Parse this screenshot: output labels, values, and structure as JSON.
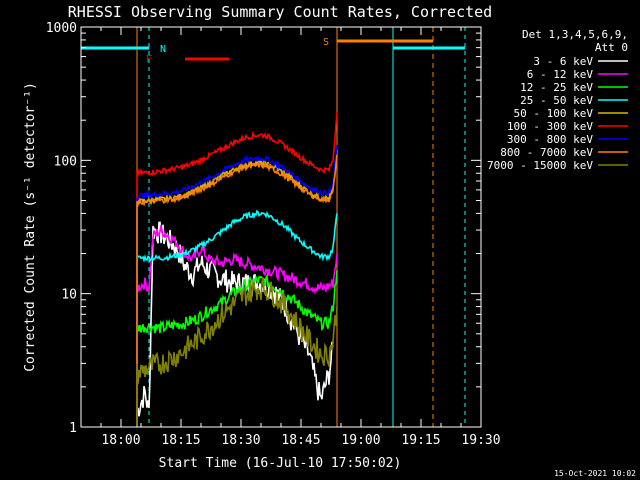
{
  "chart_data": {
    "type": "line",
    "title": "RHESSI Observing Summary Count Rates, Corrected",
    "xlabel": "Start Time (16-Jul-10 17:50:02)",
    "ylabel": "Corrected Count Rate (s⁻¹ detector⁻¹)",
    "footer": "15-Oct-2021 10:02",
    "yscale": "log",
    "ylim": [
      1,
      1000
    ],
    "xlim": [
      "17:50",
      "19:30"
    ],
    "x_ticks": [
      "18:00",
      "18:15",
      "18:30",
      "18:45",
      "19:00",
      "19:15",
      "19:30"
    ],
    "y_ticks": [
      "1",
      "10",
      "100",
      "1000"
    ],
    "legend_header": [
      "Det 1,3,4,5,6,9,",
      "Att 0"
    ],
    "legend_position": "right",
    "series": [
      {
        "name": "3 - 6 keV",
        "color": "#ffffff",
        "points": [
          [
            "18:04",
            1.3
          ],
          [
            "18:06",
            1.8
          ],
          [
            "18:07",
            1.3
          ],
          [
            "18:08",
            30
          ],
          [
            "18:10",
            28
          ],
          [
            "18:12",
            25
          ],
          [
            "18:14",
            22
          ],
          [
            "18:16",
            16
          ],
          [
            "18:18",
            14
          ],
          [
            "18:20",
            17
          ],
          [
            "18:22",
            15
          ],
          [
            "18:25",
            13
          ],
          [
            "18:28",
            12
          ],
          [
            "18:31",
            12
          ],
          [
            "18:33",
            12
          ],
          [
            "18:35",
            12
          ],
          [
            "18:37",
            11
          ],
          [
            "18:39",
            10
          ],
          [
            "18:41",
            8
          ],
          [
            "18:43",
            6
          ],
          [
            "18:45",
            4.5
          ],
          [
            "18:47",
            3.5
          ],
          [
            "18:49",
            2
          ],
          [
            "18:50",
            1.6
          ],
          [
            "18:52",
            2.5
          ],
          [
            "18:53",
            4
          ]
        ]
      },
      {
        "name": "6 - 12 keV",
        "color": "#ff00ff",
        "points": [
          [
            "18:04",
            11
          ],
          [
            "18:06",
            12
          ],
          [
            "18:07",
            11
          ],
          [
            "18:08",
            27
          ],
          [
            "18:10",
            30
          ],
          [
            "18:12",
            27
          ],
          [
            "18:14",
            24
          ],
          [
            "18:16",
            20
          ],
          [
            "18:18",
            18
          ],
          [
            "18:20",
            22
          ],
          [
            "18:22",
            18
          ],
          [
            "18:25",
            17
          ],
          [
            "18:28",
            18
          ],
          [
            "18:31",
            17
          ],
          [
            "18:34",
            16
          ],
          [
            "18:37",
            15
          ],
          [
            "18:40",
            14
          ],
          [
            "18:43",
            13
          ],
          [
            "18:46",
            12
          ],
          [
            "18:49",
            11
          ],
          [
            "18:51",
            11
          ],
          [
            "18:53",
            12
          ],
          [
            "18:54",
            20
          ]
        ]
      },
      {
        "name": "12 - 25 keV",
        "color": "#00ff00",
        "points": [
          [
            "18:04",
            5.5
          ],
          [
            "18:07",
            5.7
          ],
          [
            "18:10",
            5.5
          ],
          [
            "18:13",
            5.8
          ],
          [
            "18:16",
            6
          ],
          [
            "18:19",
            6.5
          ],
          [
            "18:22",
            7.5
          ],
          [
            "18:25",
            8.5
          ],
          [
            "18:28",
            10
          ],
          [
            "18:31",
            11.5
          ],
          [
            "18:34",
            12.5
          ],
          [
            "18:36",
            12.5
          ],
          [
            "18:38",
            11.5
          ],
          [
            "18:41",
            10
          ],
          [
            "18:44",
            8.5
          ],
          [
            "18:47",
            7
          ],
          [
            "18:50",
            6
          ],
          [
            "18:52",
            6
          ],
          [
            "18:53",
            8
          ],
          [
            "18:54",
            15
          ]
        ]
      },
      {
        "name": "25 - 50 keV",
        "color": "#00ffff",
        "points": [
          [
            "18:04",
            18.5
          ],
          [
            "18:07",
            18.5
          ],
          [
            "18:10",
            18.5
          ],
          [
            "18:13",
            19
          ],
          [
            "18:16",
            20
          ],
          [
            "18:19",
            22
          ],
          [
            "18:22",
            25
          ],
          [
            "18:25",
            29
          ],
          [
            "18:28",
            34
          ],
          [
            "18:31",
            38
          ],
          [
            "18:34",
            40
          ],
          [
            "18:36",
            40
          ],
          [
            "18:38",
            37
          ],
          [
            "18:41",
            32
          ],
          [
            "18:44",
            26
          ],
          [
            "18:47",
            22
          ],
          [
            "18:50",
            19
          ],
          [
            "18:52",
            19
          ],
          [
            "18:53",
            22
          ],
          [
            "18:54",
            40
          ]
        ]
      },
      {
        "name": "50 - 100 keV",
        "color": "#d4b800",
        "points": [
          [
            "18:04",
            49
          ],
          [
            "18:07",
            50
          ],
          [
            "18:10",
            51
          ],
          [
            "18:13",
            52
          ],
          [
            "18:16",
            55
          ],
          [
            "18:19",
            60
          ],
          [
            "18:22",
            67
          ],
          [
            "18:25",
            76
          ],
          [
            "18:28",
            85
          ],
          [
            "18:31",
            92
          ],
          [
            "18:34",
            96
          ],
          [
            "18:36",
            95
          ],
          [
            "18:38",
            90
          ],
          [
            "18:41",
            80
          ],
          [
            "18:44",
            68
          ],
          [
            "18:47",
            58
          ],
          [
            "18:50",
            52
          ],
          [
            "18:52",
            52
          ],
          [
            "18:53",
            60
          ],
          [
            "18:54",
            120
          ]
        ]
      },
      {
        "name": "100 - 300 keV",
        "color": "#ff0000",
        "points": [
          [
            "18:04",
            80
          ],
          [
            "18:07",
            81
          ],
          [
            "18:10",
            83
          ],
          [
            "18:13",
            86
          ],
          [
            "18:16",
            90
          ],
          [
            "18:19",
            97
          ],
          [
            "18:22",
            108
          ],
          [
            "18:25",
            120
          ],
          [
            "18:28",
            135
          ],
          [
            "18:31",
            148
          ],
          [
            "18:34",
            155
          ],
          [
            "18:36",
            154
          ],
          [
            "18:38",
            145
          ],
          [
            "18:41",
            128
          ],
          [
            "18:44",
            110
          ],
          [
            "18:47",
            95
          ],
          [
            "18:50",
            85
          ],
          [
            "18:52",
            85
          ],
          [
            "18:53",
            100
          ],
          [
            "18:54",
            230
          ]
        ]
      },
      {
        "name": "300 - 800 keV",
        "color": "#0000ff",
        "points": [
          [
            "18:04",
            54
          ],
          [
            "18:07",
            55
          ],
          [
            "18:10",
            56
          ],
          [
            "18:13",
            57
          ],
          [
            "18:16",
            60
          ],
          [
            "18:19",
            66
          ],
          [
            "18:22",
            73
          ],
          [
            "18:25",
            82
          ],
          [
            "18:28",
            92
          ],
          [
            "18:31",
            100
          ],
          [
            "18:34",
            104
          ],
          [
            "18:36",
            103
          ],
          [
            "18:38",
            97
          ],
          [
            "18:41",
            86
          ],
          [
            "18:44",
            73
          ],
          [
            "18:47",
            63
          ],
          [
            "18:50",
            57
          ],
          [
            "18:52",
            57
          ],
          [
            "18:53",
            66
          ],
          [
            "18:54",
            130
          ]
        ]
      },
      {
        "name": "800 - 7000 keV",
        "color": "#ff8000",
        "points": [
          [
            "18:04",
            48
          ],
          [
            "18:07",
            49
          ],
          [
            "18:10",
            50
          ],
          [
            "18:13",
            51
          ],
          [
            "18:16",
            54
          ],
          [
            "18:19",
            59
          ],
          [
            "18:22",
            65
          ],
          [
            "18:25",
            73
          ],
          [
            "18:28",
            82
          ],
          [
            "18:31",
            89
          ],
          [
            "18:34",
            92
          ],
          [
            "18:36",
            91
          ],
          [
            "18:38",
            86
          ],
          [
            "18:41",
            76
          ],
          [
            "18:44",
            65
          ],
          [
            "18:47",
            56
          ],
          [
            "18:50",
            51
          ],
          [
            "18:52",
            51
          ],
          [
            "18:53",
            58
          ],
          [
            "18:54",
            110
          ]
        ]
      },
      {
        "name": "7000 - 15000 keV",
        "color": "#808000",
        "points": [
          [
            "18:04",
            2.5
          ],
          [
            "18:07",
            2.8
          ],
          [
            "18:10",
            3
          ],
          [
            "18:13",
            3.3
          ],
          [
            "18:16",
            3.8
          ],
          [
            "18:19",
            4.5
          ],
          [
            "18:22",
            5.5
          ],
          [
            "18:25",
            6.8
          ],
          [
            "18:28",
            8.3
          ],
          [
            "18:31",
            9.8
          ],
          [
            "18:34",
            11
          ],
          [
            "18:36",
            11
          ],
          [
            "18:38",
            10
          ],
          [
            "18:41",
            8
          ],
          [
            "18:44",
            6
          ],
          [
            "18:47",
            4.5
          ],
          [
            "18:50",
            3.5
          ],
          [
            "18:52",
            3.5
          ],
          [
            "18:53",
            4.5
          ],
          [
            "18:54",
            8
          ]
        ]
      }
    ],
    "annotations": [
      {
        "label": "N",
        "color": "#00ffff"
      },
      {
        "label": "F",
        "color": "#ff0000"
      },
      {
        "label": "S",
        "color": "#ff8000"
      }
    ]
  }
}
